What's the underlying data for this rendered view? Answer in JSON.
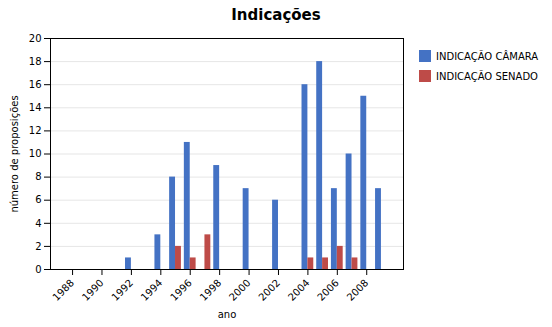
{
  "chart_data": {
    "type": "bar",
    "title": "Indicações",
    "xlabel": "ano",
    "ylabel": "número de proposições",
    "x": [
      1992,
      1993,
      1994,
      1995,
      1996,
      1997,
      1998,
      2000,
      2001,
      2002,
      2004,
      2005,
      2006,
      2007,
      2008,
      2009
    ],
    "series": [
      {
        "name": "INDICAÇÃO CÂMARA",
        "color": "#4472C4",
        "values": [
          1,
          0,
          3,
          8,
          11,
          null,
          9,
          7,
          0,
          6,
          16,
          18,
          7,
          10,
          15,
          7
        ]
      },
      {
        "name": "INDICAÇÃO SENADO",
        "color": "#BE4B48",
        "values": [
          null,
          null,
          null,
          2,
          1,
          3,
          null,
          null,
          null,
          null,
          1,
          1,
          2,
          1,
          null,
          null
        ]
      }
    ],
    "xlim": [
      1986.5,
      2010.5
    ],
    "xticks": [
      1988,
      1990,
      1992,
      1994,
      1996,
      1998,
      2000,
      2002,
      2004,
      2006,
      2008
    ],
    "ylim": [
      0,
      20
    ],
    "yticks": [
      0,
      2,
      4,
      6,
      8,
      10,
      12,
      14,
      16,
      18,
      20
    ],
    "grid": true,
    "legend": "right"
  }
}
